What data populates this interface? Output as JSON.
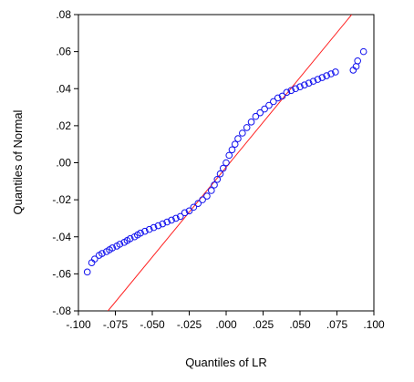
{
  "chart_data": {
    "type": "scatter",
    "title": "",
    "xlabel": "Quantiles of LR",
    "ylabel": "Quantiles of Normal",
    "xlim": [
      -0.1,
      0.1
    ],
    "ylim": [
      -0.08,
      0.08
    ],
    "x_ticks": [
      -0.1,
      -0.075,
      -0.05,
      -0.025,
      0.0,
      0.025,
      0.05,
      0.075,
      0.1
    ],
    "x_tick_labels": [
      "-.100",
      "-.075",
      "-.050",
      "-.025",
      ".000",
      ".025",
      ".050",
      ".075",
      ".100"
    ],
    "y_ticks": [
      -0.08,
      -0.06,
      -0.04,
      -0.02,
      0.0,
      0.02,
      0.04,
      0.06,
      0.08
    ],
    "y_tick_labels": [
      "-.08",
      "-.06",
      "-.04",
      "-.02",
      ".00",
      ".02",
      ".04",
      ".06",
      ".08"
    ],
    "grid": false,
    "legend": "none",
    "reference_line": {
      "x": [
        -0.08,
        0.085
      ],
      "y": [
        -0.08,
        0.08
      ],
      "color": "#ff2020"
    },
    "series": [
      {
        "marker": "open-circle",
        "color": "#1010ee",
        "points": [
          [
            -0.094,
            -0.059
          ],
          [
            -0.091,
            -0.054
          ],
          [
            -0.089,
            -0.052
          ],
          [
            -0.086,
            -0.05
          ],
          [
            -0.084,
            -0.049
          ],
          [
            -0.081,
            -0.048
          ],
          [
            -0.079,
            -0.047
          ],
          [
            -0.077,
            -0.046
          ],
          [
            -0.074,
            -0.045
          ],
          [
            -0.072,
            -0.044
          ],
          [
            -0.069,
            -0.043
          ],
          [
            -0.067,
            -0.042
          ],
          [
            -0.065,
            -0.041
          ],
          [
            -0.062,
            -0.04
          ],
          [
            -0.06,
            -0.039
          ],
          [
            -0.058,
            -0.038
          ],
          [
            -0.055,
            -0.037
          ],
          [
            -0.052,
            -0.036
          ],
          [
            -0.049,
            -0.035
          ],
          [
            -0.046,
            -0.034
          ],
          [
            -0.043,
            -0.033
          ],
          [
            -0.04,
            -0.032
          ],
          [
            -0.037,
            -0.031
          ],
          [
            -0.034,
            -0.03
          ],
          [
            -0.031,
            -0.029
          ],
          [
            -0.028,
            -0.027
          ],
          [
            -0.025,
            -0.026
          ],
          [
            -0.022,
            -0.024
          ],
          [
            -0.019,
            -0.022
          ],
          [
            -0.016,
            -0.02
          ],
          [
            -0.013,
            -0.018
          ],
          [
            -0.01,
            -0.015
          ],
          [
            -0.008,
            -0.012
          ],
          [
            -0.006,
            -0.009
          ],
          [
            -0.004,
            -0.006
          ],
          [
            -0.002,
            -0.003
          ],
          [
            0.0,
            0.0
          ],
          [
            0.002,
            0.004
          ],
          [
            0.004,
            0.007
          ],
          [
            0.006,
            0.01
          ],
          [
            0.008,
            0.013
          ],
          [
            0.011,
            0.016
          ],
          [
            0.014,
            0.019
          ],
          [
            0.017,
            0.022
          ],
          [
            0.02,
            0.025
          ],
          [
            0.023,
            0.027
          ],
          [
            0.026,
            0.029
          ],
          [
            0.029,
            0.031
          ],
          [
            0.032,
            0.033
          ],
          [
            0.035,
            0.035
          ],
          [
            0.038,
            0.036
          ],
          [
            0.041,
            0.038
          ],
          [
            0.044,
            0.039
          ],
          [
            0.047,
            0.04
          ],
          [
            0.05,
            0.041
          ],
          [
            0.053,
            0.042
          ],
          [
            0.056,
            0.043
          ],
          [
            0.059,
            0.044
          ],
          [
            0.062,
            0.045
          ],
          [
            0.065,
            0.046
          ],
          [
            0.068,
            0.047
          ],
          [
            0.071,
            0.048
          ],
          [
            0.074,
            0.049
          ],
          [
            0.086,
            0.05
          ],
          [
            0.088,
            0.052
          ],
          [
            0.089,
            0.055
          ],
          [
            0.093,
            0.06
          ]
        ]
      }
    ]
  }
}
